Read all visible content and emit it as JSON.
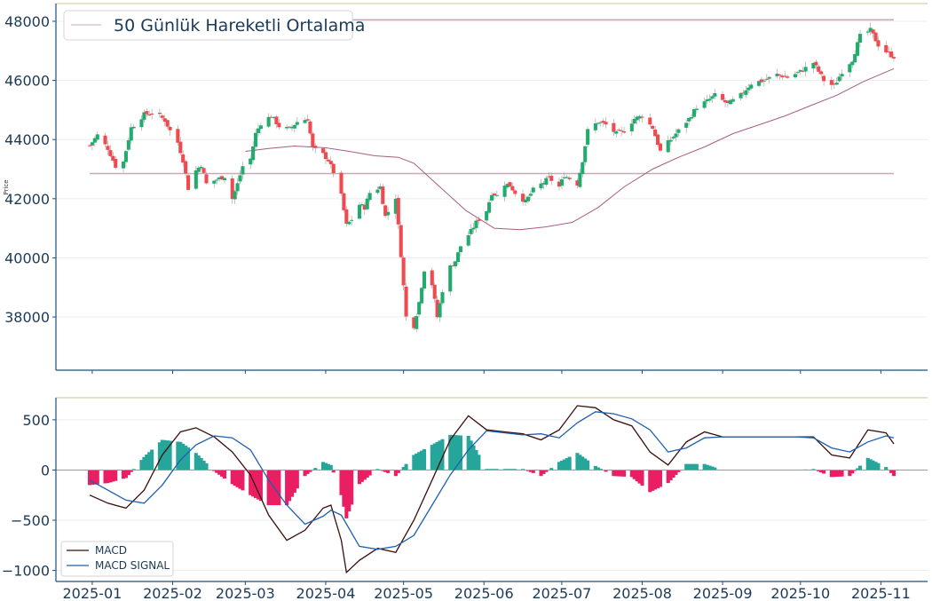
{
  "chart_data": [
    {
      "type": "candlestick",
      "ylabel": "Price",
      "ylim": [
        36200,
        48600
      ],
      "yticks": [
        38000,
        40000,
        42000,
        44000,
        46000,
        48000
      ],
      "hlines": [
        42850,
        48050
      ],
      "legend": {
        "label": "50 Günlük Hareketli Ortalama",
        "position": "top-left"
      },
      "colors": {
        "up": "#22ab6e",
        "down": "#ef4a4f",
        "ma": "#a65d7f",
        "hline": "#c8aab7"
      },
      "close_series": [
        [
          "2024-12-31",
          43800
        ],
        [
          "2025-01-03",
          44150
        ],
        [
          "2025-01-07",
          43700
        ],
        [
          "2025-01-10",
          43100
        ],
        [
          "2025-01-13",
          43250
        ],
        [
          "2025-01-16",
          44400
        ],
        [
          "2025-01-21",
          44850
        ],
        [
          "2025-01-24",
          44900
        ],
        [
          "2025-01-27",
          44800
        ],
        [
          "2025-01-29",
          44650
        ],
        [
          "2025-01-31",
          44300
        ],
        [
          "2025-02-03",
          43900
        ],
        [
          "2025-02-05",
          43300
        ],
        [
          "2025-02-07",
          42350
        ],
        [
          "2025-02-10",
          42950
        ],
        [
          "2025-02-12",
          43150
        ],
        [
          "2025-02-14",
          42500
        ],
        [
          "2025-02-18",
          42650
        ],
        [
          "2025-02-21",
          42750
        ],
        [
          "2025-02-24",
          42000
        ],
        [
          "2025-02-26",
          42500
        ],
        [
          "2025-02-28",
          43100
        ],
        [
          "2025-03-03",
          43350
        ],
        [
          "2025-03-05",
          44200
        ],
        [
          "2025-03-07",
          44550
        ],
        [
          "2025-03-11",
          44800
        ],
        [
          "2025-03-14",
          44450
        ],
        [
          "2025-03-18",
          44350
        ],
        [
          "2025-03-21",
          44600
        ],
        [
          "2025-03-25",
          44700
        ],
        [
          "2025-03-27",
          43700
        ],
        [
          "2025-03-31",
          43500
        ],
        [
          "2025-04-02",
          43300
        ],
        [
          "2025-04-04",
          42900
        ],
        [
          "2025-04-07",
          42100
        ],
        [
          "2025-04-09",
          41100
        ],
        [
          "2025-04-11",
          41300
        ],
        [
          "2025-04-14",
          41800
        ],
        [
          "2025-04-16",
          41700
        ],
        [
          "2025-04-18",
          42200
        ],
        [
          "2025-04-22",
          42400
        ],
        [
          "2025-04-24",
          41400
        ],
        [
          "2025-04-28",
          42050
        ],
        [
          "2025-04-30",
          40100
        ],
        [
          "2025-05-02",
          38000
        ],
        [
          "2025-05-05",
          37700
        ],
        [
          "2025-05-07",
          38500
        ],
        [
          "2025-05-09",
          39600
        ],
        [
          "2025-05-12",
          39100
        ],
        [
          "2025-05-14",
          38000
        ],
        [
          "2025-05-16",
          38900
        ],
        [
          "2025-05-19",
          39700
        ],
        [
          "2025-05-21",
          39900
        ],
        [
          "2025-05-23",
          40400
        ],
        [
          "2025-05-27",
          40900
        ],
        [
          "2025-05-29",
          41200
        ],
        [
          "2025-06-02",
          41600
        ],
        [
          "2025-06-04",
          42200
        ],
        [
          "2025-06-06",
          42100
        ],
        [
          "2025-06-09",
          42500
        ],
        [
          "2025-06-11",
          42450
        ],
        [
          "2025-06-13",
          42200
        ],
        [
          "2025-06-17",
          41900
        ],
        [
          "2025-06-20",
          42300
        ],
        [
          "2025-06-24",
          42550
        ],
        [
          "2025-06-26",
          42700
        ],
        [
          "2025-06-30",
          42400
        ],
        [
          "2025-07-02",
          42800
        ],
        [
          "2025-07-07",
          42500
        ],
        [
          "2025-07-09",
          43300
        ],
        [
          "2025-07-11",
          44300
        ],
        [
          "2025-07-15",
          44600
        ],
        [
          "2025-07-18",
          44500
        ],
        [
          "2025-07-22",
          44200
        ],
        [
          "2025-07-25",
          44300
        ],
        [
          "2025-07-29",
          44700
        ],
        [
          "2025-08-01",
          44800
        ],
        [
          "2025-08-05",
          44400
        ],
        [
          "2025-08-08",
          43600
        ],
        [
          "2025-08-12",
          44000
        ],
        [
          "2025-08-15",
          44300
        ],
        [
          "2025-08-19",
          44700
        ],
        [
          "2025-08-22",
          45100
        ],
        [
          "2025-08-26",
          45300
        ],
        [
          "2025-08-29",
          45500
        ],
        [
          "2025-09-03",
          45200
        ],
        [
          "2025-09-08",
          45500
        ],
        [
          "2025-09-12",
          45900
        ],
        [
          "2025-09-17",
          46000
        ],
        [
          "2025-09-22",
          46200
        ],
        [
          "2025-09-26",
          46100
        ],
        [
          "2025-10-01",
          46300
        ],
        [
          "2025-10-06",
          46600
        ],
        [
          "2025-10-10",
          46000
        ],
        [
          "2025-10-14",
          45800
        ],
        [
          "2025-10-17",
          46300
        ],
        [
          "2025-10-21",
          46700
        ],
        [
          "2025-10-24",
          47500
        ],
        [
          "2025-10-28",
          47700
        ],
        [
          "2025-10-31",
          47200
        ],
        [
          "2025-11-04",
          46900
        ],
        [
          "2025-11-06",
          46800
        ]
      ],
      "ma_series": [
        [
          "2025-03-01",
          43600
        ],
        [
          "2025-03-10",
          43700
        ],
        [
          "2025-03-20",
          43780
        ],
        [
          "2025-04-01",
          43720
        ],
        [
          "2025-04-10",
          43600
        ],
        [
          "2025-04-20",
          43450
        ],
        [
          "2025-04-29",
          43400
        ],
        [
          "2025-05-05",
          43200
        ],
        [
          "2025-05-15",
          42400
        ],
        [
          "2025-05-25",
          41600
        ],
        [
          "2025-06-05",
          41000
        ],
        [
          "2025-06-15",
          40950
        ],
        [
          "2025-06-25",
          41050
        ],
        [
          "2025-07-05",
          41200
        ],
        [
          "2025-07-15",
          41700
        ],
        [
          "2025-07-25",
          42400
        ],
        [
          "2025-08-05",
          43000
        ],
        [
          "2025-08-15",
          43400
        ],
        [
          "2025-08-25",
          43750
        ],
        [
          "2025-09-05",
          44200
        ],
        [
          "2025-09-15",
          44500
        ],
        [
          "2025-09-25",
          44800
        ],
        [
          "2025-10-05",
          45150
        ],
        [
          "2025-10-15",
          45500
        ],
        [
          "2025-10-25",
          45950
        ],
        [
          "2025-11-06",
          46400
        ]
      ]
    },
    {
      "type": "macd",
      "ylim": [
        -1110,
        720
      ],
      "yticks": [
        -1000,
        -500,
        0,
        500
      ],
      "xticks": [
        "2025-01",
        "2025-02",
        "2025-03",
        "2025-04",
        "2025-05",
        "2025-06",
        "2025-07",
        "2025-08",
        "2025-09",
        "2025-10",
        "2025-11"
      ],
      "legend": {
        "position": "bottom-left"
      },
      "series": [
        {
          "name": "MACD",
          "color": "#3a0e0e",
          "values": [
            [
              "2024-12-31",
              -250
            ],
            [
              "2025-01-07",
              -330
            ],
            [
              "2025-01-14",
              -380
            ],
            [
              "2025-01-21",
              -200
            ],
            [
              "2025-01-28",
              150
            ],
            [
              "2025-02-04",
              380
            ],
            [
              "2025-02-10",
              420
            ],
            [
              "2025-02-17",
              330
            ],
            [
              "2025-02-24",
              180
            ],
            [
              "2025-03-03",
              -50
            ],
            [
              "2025-03-10",
              -450
            ],
            [
              "2025-03-17",
              -700
            ],
            [
              "2025-03-24",
              -600
            ],
            [
              "2025-03-31",
              -380
            ],
            [
              "2025-04-03",
              -350
            ],
            [
              "2025-04-07",
              -700
            ],
            [
              "2025-04-09",
              -1020
            ],
            [
              "2025-04-14",
              -900
            ],
            [
              "2025-04-21",
              -780
            ],
            [
              "2025-04-28",
              -820
            ],
            [
              "2025-05-05",
              -500
            ],
            [
              "2025-05-12",
              -100
            ],
            [
              "2025-05-19",
              300
            ],
            [
              "2025-05-26",
              540
            ],
            [
              "2025-06-02",
              400
            ],
            [
              "2025-06-09",
              380
            ],
            [
              "2025-06-16",
              360
            ],
            [
              "2025-06-23",
              300
            ],
            [
              "2025-06-30",
              400
            ],
            [
              "2025-07-07",
              640
            ],
            [
              "2025-07-14",
              620
            ],
            [
              "2025-07-21",
              500
            ],
            [
              "2025-07-28",
              440
            ],
            [
              "2025-08-04",
              180
            ],
            [
              "2025-08-11",
              50
            ],
            [
              "2025-08-18",
              280
            ],
            [
              "2025-08-25",
              380
            ],
            [
              "2025-09-01",
              330
            ],
            [
              "2025-09-15",
              330
            ],
            [
              "2025-09-29",
              330
            ],
            [
              "2025-10-06",
              330
            ],
            [
              "2025-10-13",
              150
            ],
            [
              "2025-10-20",
              120
            ],
            [
              "2025-10-27",
              400
            ],
            [
              "2025-11-03",
              370
            ],
            [
              "2025-11-06",
              260
            ]
          ]
        },
        {
          "name": "MACD SIGNAL",
          "color": "#1c60b0",
          "values": [
            [
              "2024-12-31",
              -100
            ],
            [
              "2025-01-07",
              -200
            ],
            [
              "2025-01-14",
              -300
            ],
            [
              "2025-01-21",
              -330
            ],
            [
              "2025-01-28",
              -150
            ],
            [
              "2025-02-04",
              100
            ],
            [
              "2025-02-10",
              250
            ],
            [
              "2025-02-17",
              340
            ],
            [
              "2025-02-24",
              320
            ],
            [
              "2025-03-03",
              200
            ],
            [
              "2025-03-10",
              -100
            ],
            [
              "2025-03-17",
              -350
            ],
            [
              "2025-03-24",
              -540
            ],
            [
              "2025-03-31",
              -460
            ],
            [
              "2025-04-03",
              -400
            ],
            [
              "2025-04-07",
              -450
            ],
            [
              "2025-04-14",
              -760
            ],
            [
              "2025-04-21",
              -790
            ],
            [
              "2025-04-28",
              -760
            ],
            [
              "2025-05-05",
              -650
            ],
            [
              "2025-05-12",
              -350
            ],
            [
              "2025-05-19",
              -50
            ],
            [
              "2025-05-26",
              200
            ],
            [
              "2025-06-02",
              390
            ],
            [
              "2025-06-09",
              370
            ],
            [
              "2025-06-16",
              350
            ],
            [
              "2025-06-23",
              360
            ],
            [
              "2025-06-30",
              320
            ],
            [
              "2025-07-07",
              470
            ],
            [
              "2025-07-14",
              580
            ],
            [
              "2025-07-21",
              560
            ],
            [
              "2025-07-28",
              510
            ],
            [
              "2025-08-04",
              400
            ],
            [
              "2025-08-11",
              180
            ],
            [
              "2025-08-18",
              220
            ],
            [
              "2025-08-25",
              320
            ],
            [
              "2025-09-01",
              330
            ],
            [
              "2025-09-15",
              330
            ],
            [
              "2025-09-29",
              330
            ],
            [
              "2025-10-06",
              320
            ],
            [
              "2025-10-13",
              220
            ],
            [
              "2025-10-20",
              180
            ],
            [
              "2025-10-27",
              280
            ],
            [
              "2025-11-03",
              340
            ],
            [
              "2025-11-06",
              320
            ]
          ]
        }
      ],
      "histogram_colors": {
        "positive": "#26a69a",
        "negative": "#e91e63"
      }
    }
  ]
}
